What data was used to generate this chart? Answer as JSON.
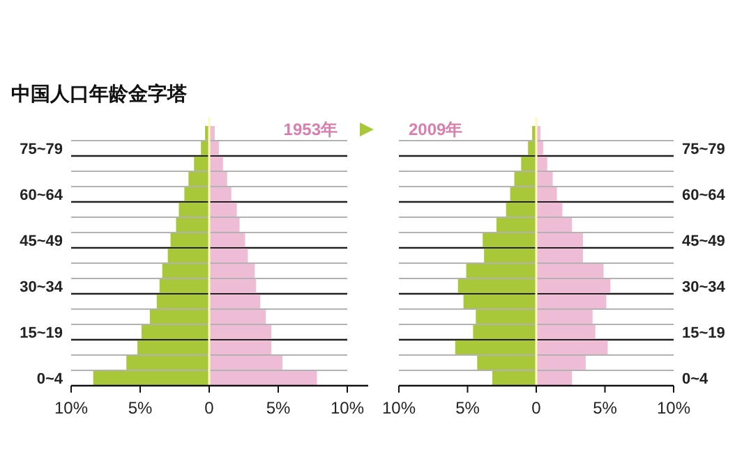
{
  "chart_data": [
    {
      "type": "bar",
      "orientation": "horizontal",
      "stacked": true,
      "title": "中国人口年龄金字塔",
      "annotations": [
        "1953年"
      ],
      "ref_lines": [
        {
          "axis": "x",
          "value": 0,
          "color": "#fff8c0"
        }
      ],
      "categories": [
        null,
        "75~79",
        null,
        null,
        "60~64",
        null,
        null,
        "45~49",
        null,
        null,
        "30~34",
        null,
        null,
        "15~19",
        null,
        null,
        "0~4"
      ],
      "series": [
        {
          "color": "#a8c83a",
          "values": [
            -0.3,
            -0.6,
            -1.1,
            -1.5,
            -1.8,
            -2.2,
            -2.4,
            -2.8,
            -3.0,
            -3.4,
            -3.6,
            -3.8,
            -4.3,
            -4.9,
            -5.2,
            -6.0,
            -8.4
          ]
        },
        {
          "color": "#efbcd6",
          "values": [
            0.4,
            0.7,
            1.0,
            1.3,
            1.6,
            2.0,
            2.2,
            2.6,
            2.8,
            3.3,
            3.4,
            3.7,
            4.1,
            4.5,
            4.5,
            5.3,
            7.8
          ]
        }
      ],
      "xlim": [
        -10,
        10
      ],
      "xticks": [
        {
          "value": -10,
          "label": "10%"
        },
        {
          "value": -5,
          "label": "5%"
        },
        0,
        {
          "value": 5,
          "label": "5%"
        },
        {
          "value": 10,
          "label": "10%"
        }
      ],
      "grid": "y"
    },
    {
      "type": "bar",
      "orientation": "horizontal",
      "stacked": true,
      "annotations": [
        "2009年"
      ],
      "ref_lines": [
        {
          "axis": "x",
          "value": 0,
          "color": "#fff8c0"
        }
      ],
      "categories": [
        null,
        "75~79",
        null,
        null,
        "60~64",
        null,
        null,
        "45~49",
        null,
        null,
        "30~34",
        null,
        null,
        "15~19",
        null,
        null,
        "0~4"
      ],
      "series": [
        {
          "color": "#a8c83a",
          "values": [
            -0.3,
            -0.6,
            -1.1,
            -1.6,
            -1.9,
            -2.2,
            -2.9,
            -3.9,
            -3.8,
            -5.1,
            -5.7,
            -5.3,
            -4.4,
            -4.6,
            -5.9,
            -4.3,
            -3.2
          ]
        },
        {
          "color": "#efbcd6",
          "values": [
            0.3,
            0.5,
            0.8,
            1.2,
            1.5,
            1.9,
            2.6,
            3.4,
            3.4,
            4.9,
            5.4,
            5.1,
            4.1,
            4.3,
            5.2,
            3.6,
            2.6
          ]
        }
      ],
      "xlim": [
        -10,
        10
      ],
      "xticks": [
        {
          "value": -10,
          "label": "10%"
        },
        {
          "value": -5,
          "label": "5%"
        },
        0,
        {
          "value": 5,
          "label": "5%"
        },
        {
          "value": 10,
          "label": "10%"
        }
      ],
      "grid": "y"
    }
  ]
}
